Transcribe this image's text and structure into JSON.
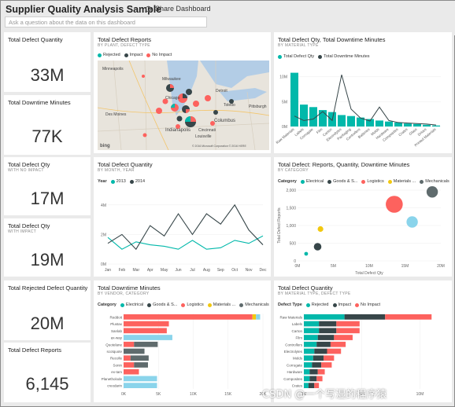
{
  "header": {
    "title": "Supplier Quality Analysis Sample",
    "share_label": "Share Dashboard",
    "qa_placeholder": "Ask a question about the data on this dashboard"
  },
  "colors": {
    "teal": "#01b8aa",
    "dark": "#374649",
    "red": "#fd625e",
    "yellow": "#f2c80f",
    "gray": "#5f6b6d",
    "blue": "#8ad4eb"
  },
  "kpi": {
    "total_defect_qty": {
      "title": "Total Defect Quantity",
      "value": "33M"
    },
    "total_downtime": {
      "title": "Total Downtime Minutes",
      "value": "77K"
    },
    "defect_no_impact": {
      "title": "Total Defect Qty",
      "subtitle": "WITH NO IMPACT",
      "value": "17M"
    },
    "defect_impact": {
      "title": "Total Defect Qty",
      "subtitle": "WITH IMPACT",
      "value": "19M"
    },
    "rejected": {
      "title": "Total Rejected Defect Quantity",
      "value": "20M"
    },
    "reports": {
      "title": "Total Defect Reports",
      "value": "6,145"
    }
  },
  "map": {
    "title": "Total Defect Reports",
    "subtitle": "BY PLANT, DEFECT TYPE",
    "legend": [
      {
        "label": "Rejected",
        "color": "#01b8aa"
      },
      {
        "label": "Impact",
        "color": "#374649"
      },
      {
        "label": "No Impact",
        "color": "#fd625e"
      }
    ],
    "labels": [
      "Chicago",
      "Indianapolis",
      "Columbus",
      "Toledo",
      "Detroit",
      "Pittsburgh",
      "Milwaukee",
      "Minneapolis",
      "Des Moines",
      "Louisville",
      "Cincinnati"
    ],
    "attribution": "© 2016 Microsoft Corporation  © 2016 HERE",
    "bing": "bing"
  },
  "chart_downtime_material": {
    "title": "Total Defect Qty, Total Downtime Minutes",
    "subtitle": "BY MATERIAL TYPE",
    "legend": [
      "Total Defect Qty",
      "Total Downtime Minutes"
    ]
  },
  "chart_month": {
    "title": "Total Defect Quantity",
    "subtitle": "BY MONTH, YEAR",
    "legend_title": "Year",
    "legend": [
      "2013",
      "2014"
    ]
  },
  "chart_bubble": {
    "title": "Total Defect: Reports, Quantity, Downtime Minutes",
    "subtitle": "BY CATEGORY",
    "legend_title": "Category",
    "legend": [
      "Electrical",
      "Goods & S...",
      "Logistics",
      "Materials ...",
      "Mechanicals"
    ]
  },
  "chart_vendor": {
    "title": "Total Downtime Minutes",
    "subtitle": "BY VENDOR, CATEGORY",
    "legend_title": "Category",
    "legend": [
      "Electrical",
      "Goods & S...",
      "Logistics",
      "Materials ...",
      "Mechanicals"
    ]
  },
  "chart_material_defect": {
    "title": "Total Defect Quantity",
    "subtitle": "BY MATERIAL TYPE, DEFECT TYPE",
    "legend_title": "Defect Type",
    "legend": [
      "Rejected",
      "Impact",
      "No Impact"
    ]
  },
  "watermark": "CSDN @一个写湿的程序猿",
  "chart_data": [
    {
      "type": "bar",
      "title": "Total Defect Qty, Total Downtime Minutes",
      "categories": [
        "Raw Materials",
        "Labels",
        "Corrugate",
        "Film",
        "Carton",
        "Electrolytes",
        "Packaging",
        "Controllers",
        "Batteries",
        "Molds",
        "Hardware",
        "Composites",
        "Crates",
        "Glass",
        "Drives",
        "Printed Materials"
      ],
      "yticks": [
        "0M",
        "5M",
        "10M"
      ],
      "ylim": [
        0,
        12
      ],
      "series": [
        {
          "name": "Total Defect Qty",
          "values": [
            10.8,
            4.4,
            3.9,
            3.3,
            2.9,
            2.3,
            2.1,
            1.8,
            1.5,
            1.2,
            1.0,
            0.8,
            0.6,
            0.5,
            0.35,
            0.2
          ]
        },
        {
          "name": "Total Downtime Minutes",
          "values": [
            2.1,
            1.2,
            1.5,
            3.0,
            1.2,
            10.4,
            3.5,
            1.7,
            1.1,
            3.9,
            1.2,
            0.8,
            0.7,
            0.6,
            0.5,
            0.3
          ]
        }
      ]
    },
    {
      "type": "line",
      "title": "Total Defect Quantity",
      "categories": [
        "Jan",
        "Feb",
        "Mar",
        "Apr",
        "May",
        "Jun",
        "Jul",
        "Aug",
        "Sep",
        "Oct",
        "Nov",
        "Dec"
      ],
      "yticks": [
        "0M",
        "2M",
        "4M"
      ],
      "ylim": [
        0,
        5
      ],
      "series": [
        {
          "name": "2013",
          "values": [
            1.8,
            1.0,
            1.5,
            1.3,
            1.2,
            1.0,
            1.6,
            1.0,
            1.1,
            1.6,
            1.4,
            1.9
          ]
        },
        {
          "name": "2014",
          "values": [
            1.4,
            2.0,
            1.0,
            2.6,
            1.9,
            3.4,
            2.0,
            3.4,
            2.7,
            4.0,
            2.3,
            1.3
          ]
        }
      ]
    },
    {
      "type": "scatter",
      "title": "Total Defect: Reports, Quantity, Downtime Minutes",
      "xlabel": "Total Defect Qty",
      "ylabel": "Total Defect Reports",
      "xticks": [
        "0M",
        "5M",
        "10M",
        "15M",
        "20M"
      ],
      "yticks": [
        "0",
        "500",
        "1,000",
        "1,500",
        "2,000"
      ],
      "xlim": [
        0,
        20
      ],
      "ylim": [
        0,
        2000
      ],
      "series": [
        {
          "name": "Electrical",
          "x": [
            1.2
          ],
          "y": [
            200
          ],
          "size": [
            2
          ]
        },
        {
          "name": "Goods & S...",
          "x": [
            16
          ],
          "y": [
            1100
          ],
          "size": [
            6
          ]
        },
        {
          "name": "Logistics",
          "x": [
            13.5
          ],
          "y": [
            1600
          ],
          "size": [
            9
          ]
        },
        {
          "name": "Materials ...",
          "x": [
            3.2
          ],
          "y": [
            900
          ],
          "size": [
            3
          ]
        },
        {
          "name": "Mechanicals",
          "x": [
            2.8
          ],
          "y": [
            400
          ],
          "size": [
            4
          ]
        },
        {
          "name": "Mechanicals",
          "x": [
            18.8
          ],
          "y": [
            1950
          ],
          "size": [
            6
          ]
        }
      ]
    },
    {
      "type": "bar",
      "title": "Total Downtime Minutes",
      "categories": [
        "Reddoit",
        "Plustax",
        "Sanlab",
        "ax-way",
        "Quotelane",
        "scotquote",
        "Recolle",
        "Sonin",
        "ex-tam",
        "Planetholode",
        "creodarin"
      ],
      "xticks": [
        "0K",
        "5K",
        "10K",
        "15K",
        "20K"
      ],
      "xlim": [
        0,
        20
      ],
      "series": [
        {
          "name": "Electrical",
          "values": [
            0,
            0,
            0,
            0,
            0,
            0,
            0,
            0,
            0,
            0,
            0
          ]
        },
        {
          "name": "Goods & S...",
          "values": [
            0,
            0,
            0,
            0,
            0,
            0,
            0,
            0,
            0,
            0,
            0
          ]
        },
        {
          "name": "Logistics",
          "values": [
            18.5,
            6.5,
            6.2,
            0,
            1.5,
            0,
            1.0,
            1.5,
            2.2,
            0,
            0
          ]
        },
        {
          "name": "Materials ...",
          "values": [
            0.5,
            0,
            0,
            0,
            0,
            0,
            0,
            0,
            0,
            0,
            0
          ]
        },
        {
          "name": "Mechanicals",
          "values": [
            0,
            0,
            0,
            0,
            3.4,
            3.0,
            2.6,
            2.0,
            0,
            0,
            0
          ]
        },
        {
          "name": "Blue",
          "values": [
            0.6,
            0,
            0,
            7.0,
            0,
            0,
            0,
            0,
            0,
            4.8,
            4.8
          ]
        }
      ]
    },
    {
      "type": "bar",
      "title": "Total Defect Quantity",
      "categories": [
        "Raw Materials",
        "Labels",
        "Carton",
        "Film",
        "Controllers",
        "Electrolytes",
        "Molds",
        "Corrugate",
        "Hardware",
        "Composites",
        "Crates"
      ],
      "xticks": [
        "0M",
        "5M",
        "10M"
      ],
      "xlim": [
        0,
        12
      ],
      "series": [
        {
          "name": "Rejected",
          "values": [
            3.5,
            1.3,
            1.3,
            1.2,
            1.1,
            0.9,
            0.8,
            0.7,
            0.5,
            0.5,
            0.4
          ]
        },
        {
          "name": "Impact",
          "values": [
            3.5,
            1.5,
            1.5,
            1.4,
            1.2,
            1.1,
            0.9,
            0.8,
            0.7,
            0.6,
            0.5
          ]
        },
        {
          "name": "No Impact",
          "values": [
            4.0,
            2.0,
            2.0,
            1.6,
            1.3,
            1.2,
            0.9,
            0.9,
            0.6,
            0.5,
            0.4
          ]
        }
      ]
    }
  ]
}
